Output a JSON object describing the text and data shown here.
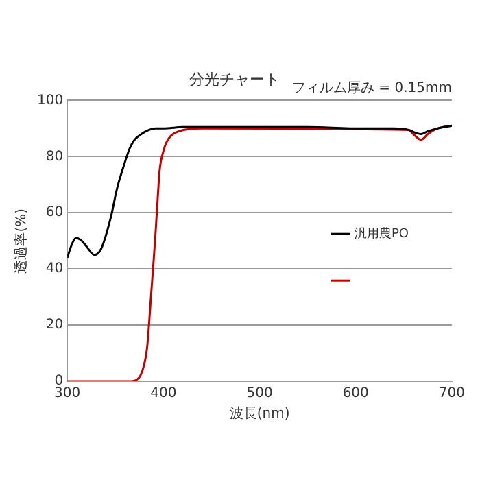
{
  "chart_data": {
    "type": "line",
    "title": "分光チャート",
    "xlabel": "波長(nm)",
    "ylabel": "透過率(%)",
    "annotations": [
      "フィルム厚み = 0.15mm"
    ],
    "xlim": [
      300,
      700
    ],
    "xticks": [
      300,
      400,
      500,
      600,
      700
    ],
    "ylim": [
      0,
      100
    ],
    "yticks": [
      0,
      20,
      40,
      60,
      80,
      100
    ],
    "grid": "y",
    "legend": "right",
    "marker": "none",
    "line_style": "solid",
    "series": [
      {
        "name": "汎用農PO",
        "color": "#000000",
        "x": [
          300,
          305,
          309,
          315,
          320,
          328,
          335,
          345,
          352,
          359,
          365,
          370,
          377,
          385,
          392,
          400,
          420,
          450,
          500,
          550,
          600,
          640,
          655,
          662,
          668,
          675,
          685,
          700
        ],
        "values": [
          44,
          49,
          51,
          50,
          48,
          45,
          47,
          58,
          69,
          77,
          83,
          86,
          88,
          89.5,
          90,
          90,
          90.5,
          90.5,
          90.5,
          90.5,
          90,
          90,
          89.5,
          88.5,
          88,
          89,
          90,
          91
        ]
      },
      {
        "color": "#c00000",
        "x": [
          300,
          340,
          365,
          372,
          376,
          380,
          383,
          387,
          390,
          392,
          394,
          396,
          400,
          403,
          408,
          416,
          440,
          655,
          660,
          668,
          675,
          685,
          700
        ],
        "values": [
          0,
          0,
          0,
          0.5,
          2,
          6,
          12,
          30,
          44,
          54,
          65,
          75,
          82,
          85,
          87.5,
          89,
          90,
          89.5,
          88,
          86,
          88,
          90,
          91
        ]
      }
    ]
  }
}
